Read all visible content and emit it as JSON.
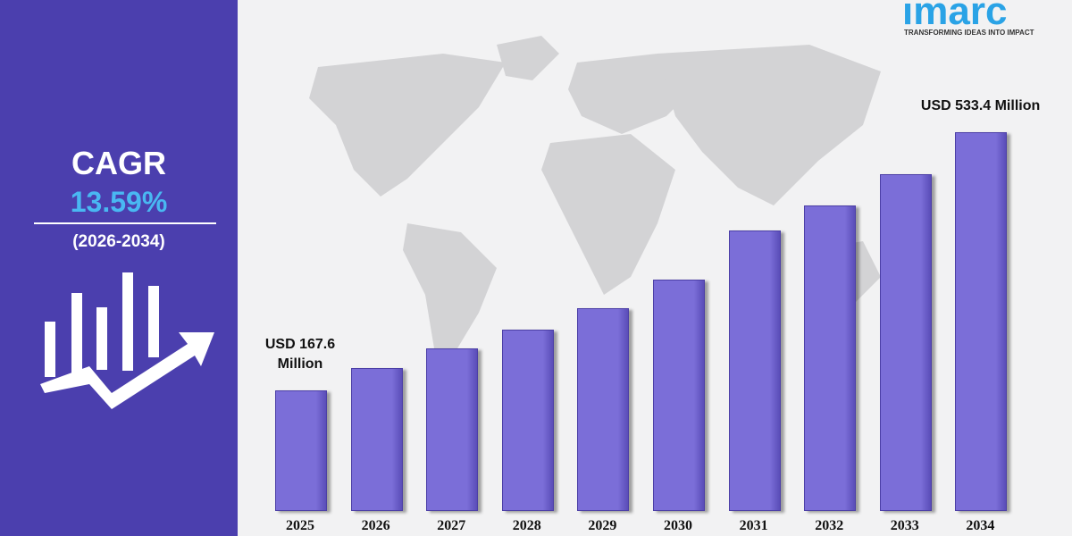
{
  "sidebar": {
    "label": "CAGR",
    "rate": "13.59%",
    "period": "(2026-2034)"
  },
  "logo": {
    "name": "imarc",
    "tagline": "TRANSFORMING IDEAS INTO IMPACT"
  },
  "chart_data": {
    "type": "bar",
    "categories": [
      "2025",
      "2026",
      "2027",
      "2028",
      "2029",
      "2030",
      "2031",
      "2032",
      "2033",
      "2034"
    ],
    "values": [
      167.6,
      199.4,
      227.5,
      254.4,
      285.0,
      325.4,
      393.9,
      429.4,
      473.4,
      533.4
    ],
    "value_labels": [
      "USD 167.6 Million",
      null,
      null,
      null,
      null,
      null,
      null,
      null,
      null,
      "USD 533.4 Million"
    ],
    "color": "#7b6ed8"
  }
}
